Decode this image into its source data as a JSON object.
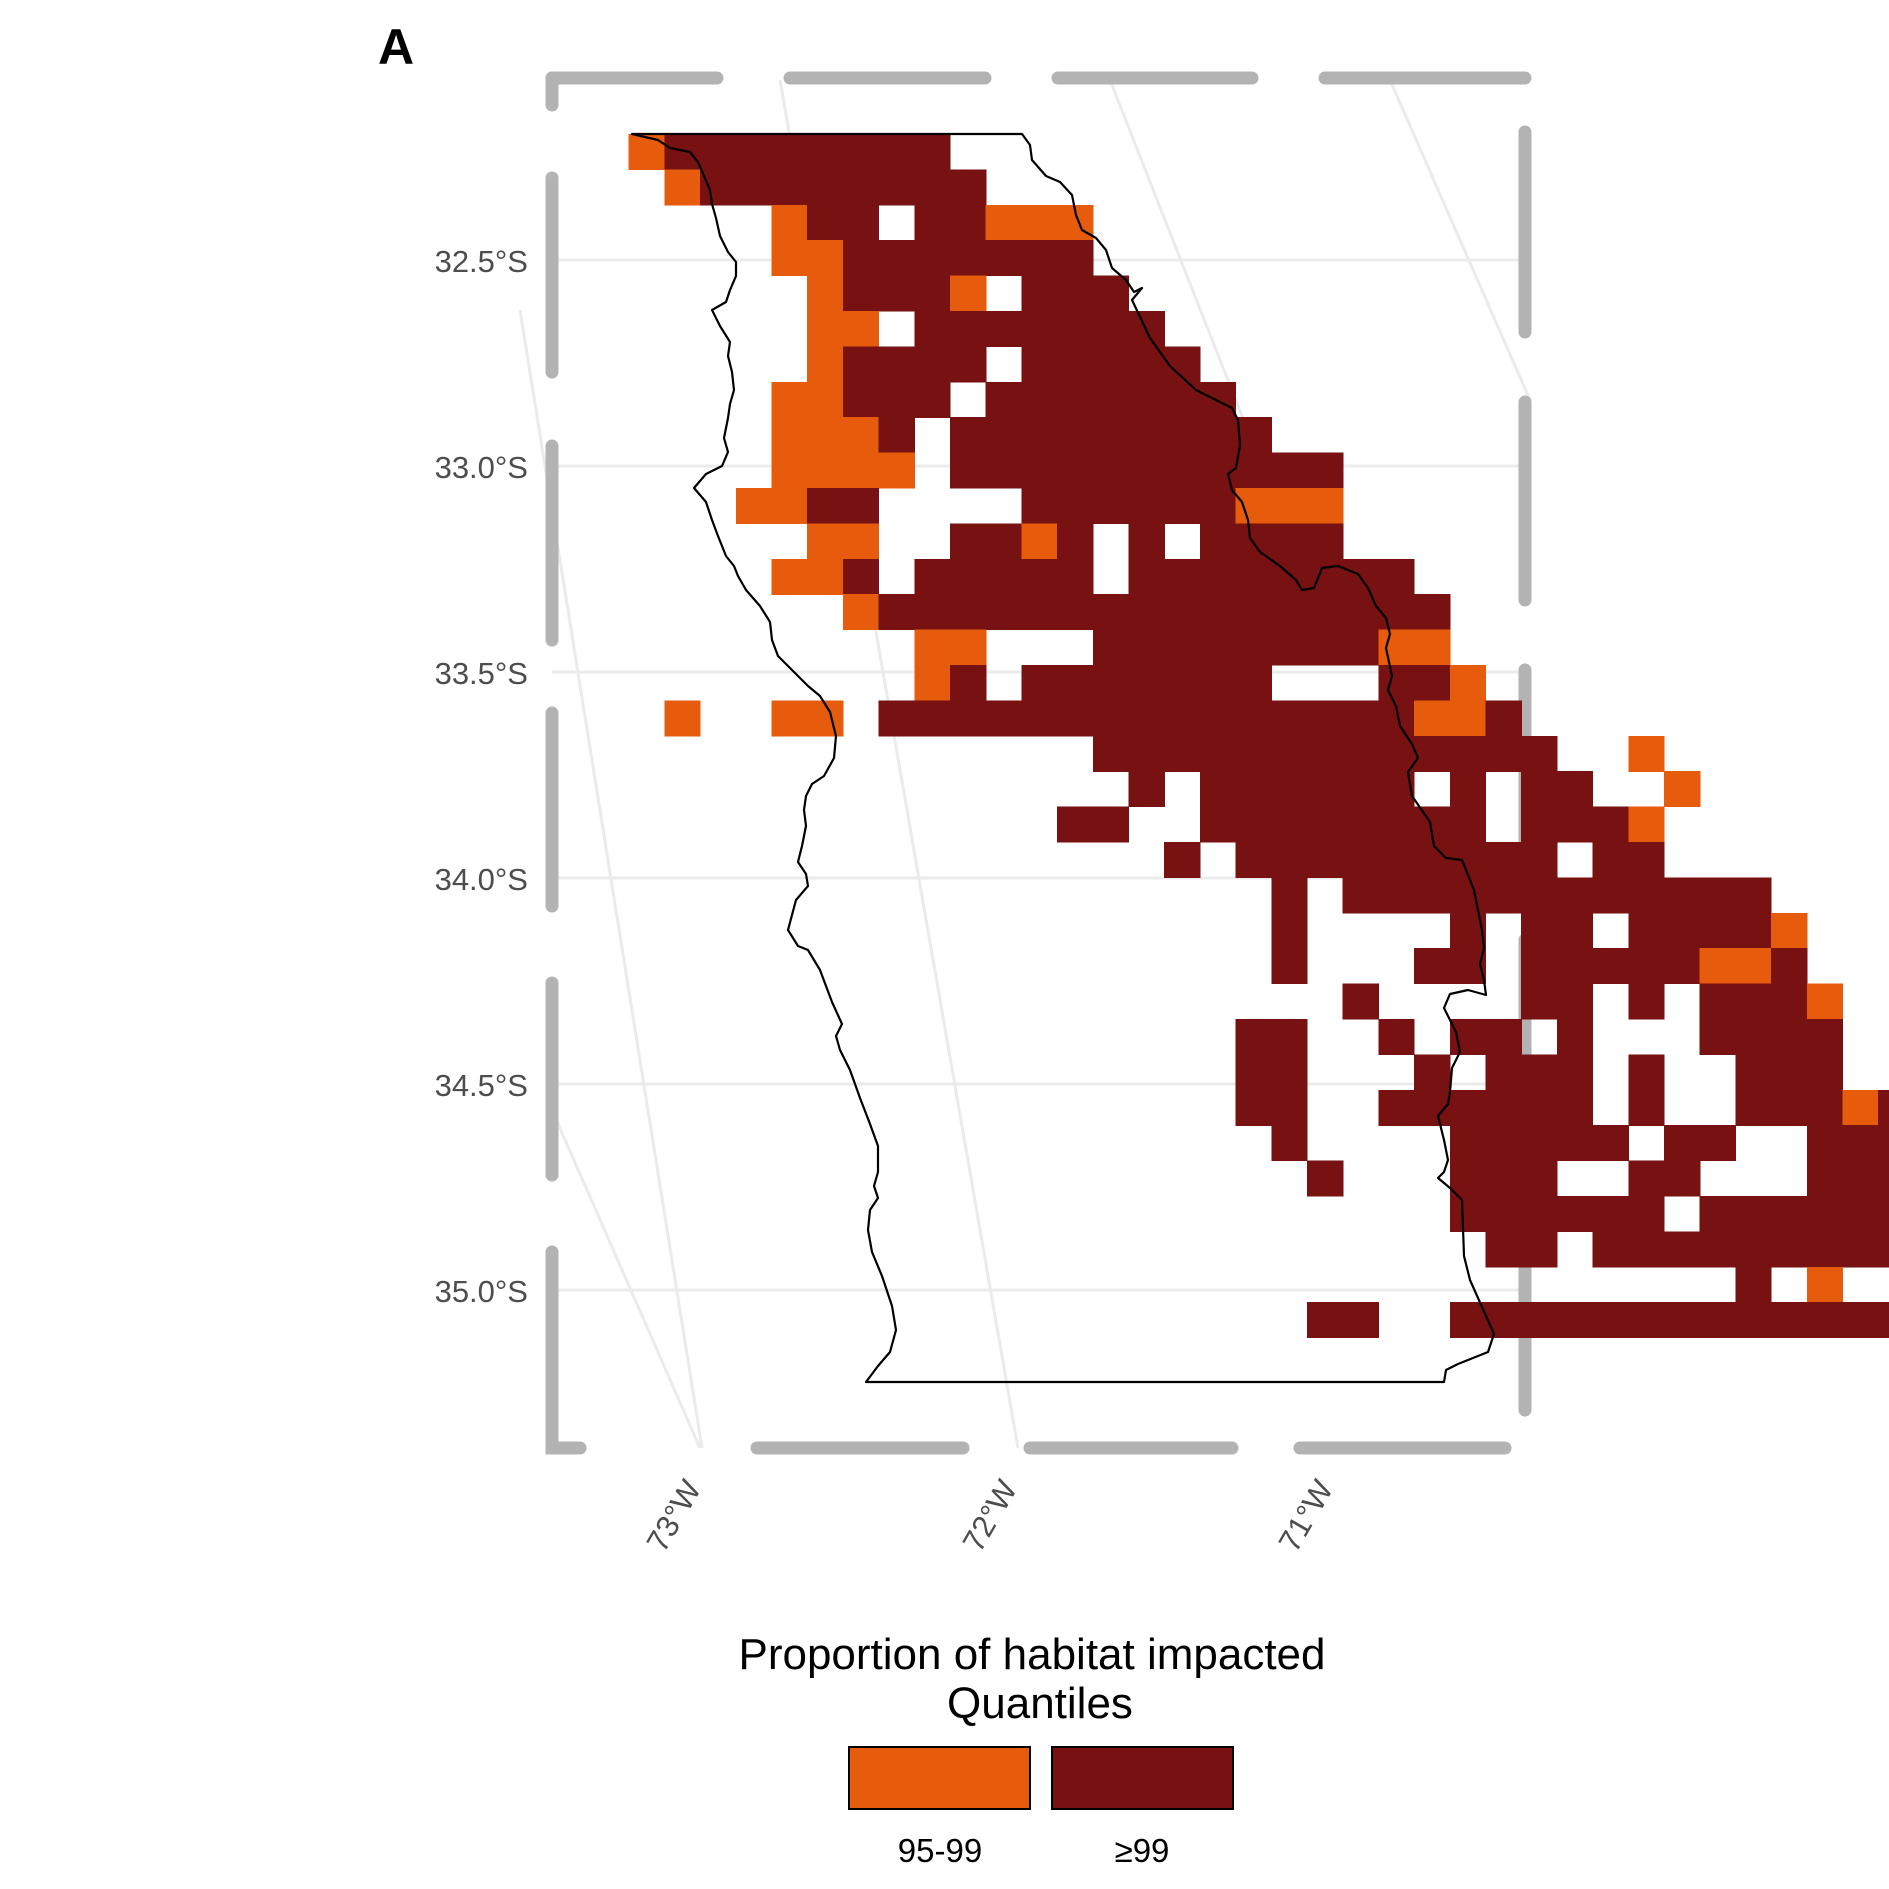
{
  "panel_tag": "A",
  "lat_ticks": [
    "32.5°S",
    "33.0°S",
    "33.5°S",
    "34.0°S",
    "34.5°S",
    "35.0°S"
  ],
  "lon_ticks": [
    "73°W",
    "72°W",
    "71°W"
  ],
  "legend": {
    "title_line1": "Proportion of habitat impacted",
    "title_line2": "Quantiles",
    "items": [
      {
        "label": "95-99",
        "color": "#e65b0c"
      },
      {
        "label": "≥99",
        "color": "#771112"
      }
    ]
  },
  "colors": {
    "q95_99": "#e65b0c",
    "q99": "#771112",
    "grid": "#ebebeb",
    "frame": "#b3b3b3",
    "coast": "#000000"
  },
  "grid_rows": [
    "O11111111.",
    ".O11111111",
    "..O11.11OOO",
    "..OO1111111",
    "...O111O.111",
    "...OO.1111111",
    "...O1111.11111",
    "...OO111.1111111",
    "..OOO1.111111111",
    "..OOOO.11111111111",
    "..OO11....111111OOO",
    "...OO..11O1.1.1111",
    "...OO1.11111.11111111",
    "....O1111111111111111",
    "......OO...11111111OO",
    ".......O1.1111111...11O",
    "O..OO.111111111111111OO1",
    ".........1111111111111..O",
    "..........1.111111.1.11..O",
    ".........11..11111111.111O.",
    "..........1.111111111.11",
    "................1.111111111111",
    ".............1....1.11.1111O",
    "...............1...11.11111OO1",
    "...............1....11.1.111O",
    "..........11..1.11.1...1111",
    "..........11...1.111.1..111",
    "..........11..111111.1..111O1",
    "...........1....11111.11..111O1",
    "............1...111..11...111O1",
    "................111111.1111111O",
    ".................11.1111111111O",
    "..............................1.O",
    "...........11..111111111111111"
  ],
  "grid_offsets": [
    1,
    1,
    3,
    3,
    3,
    3,
    3,
    2,
    3,
    3,
    2,
    3,
    2,
    3,
    3,
    2,
    2,
    5,
    5,
    4,
    6,
    3,
    6,
    4,
    6,
    8,
    8,
    8,
    8,
    8,
    8,
    8,
    2,
    9
  ]
}
